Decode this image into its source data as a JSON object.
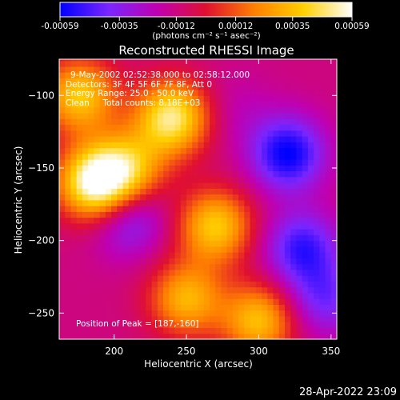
{
  "colorbar": {
    "ticks": [
      "-0.00059",
      "-0.00035",
      "-0.00012",
      "0.00012",
      "0.00035",
      "0.00059"
    ],
    "unit_label": "(photons cm⁻² s⁻¹ asec⁻²)",
    "colormap_stops": [
      "#0000ff",
      "#7a26ff",
      "#c000b0",
      "#e01030",
      "#ff8000",
      "#ffd000",
      "#ffffff"
    ],
    "range": [
      -0.00059,
      0.00059
    ]
  },
  "chart_data": {
    "type": "heatmap",
    "title": "Reconstructed RHESSI Image",
    "xlabel": "Heliocentric X (arcsec)",
    "ylabel": "Heliocentric Y (arcsec)",
    "xlim": [
      162,
      354
    ],
    "ylim": [
      -268,
      -75
    ],
    "x_ticks": [
      200,
      250,
      300,
      350
    ],
    "y_ticks": [
      -100,
      -150,
      -200,
      -250
    ],
    "grid": false,
    "annotations": {
      "time": "9-May-2002 02:52:38.000 to 02:58:12.000",
      "detectors": "Detectors: 3F 4F 5F 6F 7F 8F, Att 0",
      "energy": "Energy Range: 25.0 - 50.0 keV",
      "clean": "Clean     Total counts: 8.18E+03",
      "peak": "Position of Peak = [187,-160]"
    },
    "bright_sources": [
      {
        "x": 187,
        "y": -160,
        "value": 0.00059
      },
      {
        "x": 240,
        "y": -115,
        "value": 0.0005
      },
      {
        "x": 176,
        "y": -100,
        "value": 0.00038
      },
      {
        "x": 270,
        "y": -190,
        "value": 0.00038
      },
      {
        "x": 300,
        "y": -255,
        "value": 0.00035
      },
      {
        "x": 210,
        "y": -150,
        "value": 0.0003
      },
      {
        "x": 250,
        "y": -240,
        "value": 0.00032
      }
    ],
    "dim_regions": [
      {
        "x": 320,
        "y": -140,
        "value": -0.00059
      },
      {
        "x": 330,
        "y": -205,
        "value": -0.0005
      },
      {
        "x": 210,
        "y": -185,
        "value": -0.0004
      },
      {
        "x": 345,
        "y": -240,
        "value": -0.0004
      },
      {
        "x": 285,
        "y": -110,
        "value": -0.0002
      }
    ]
  },
  "footer": {
    "timestamp": "28-Apr-2022 23:09"
  }
}
